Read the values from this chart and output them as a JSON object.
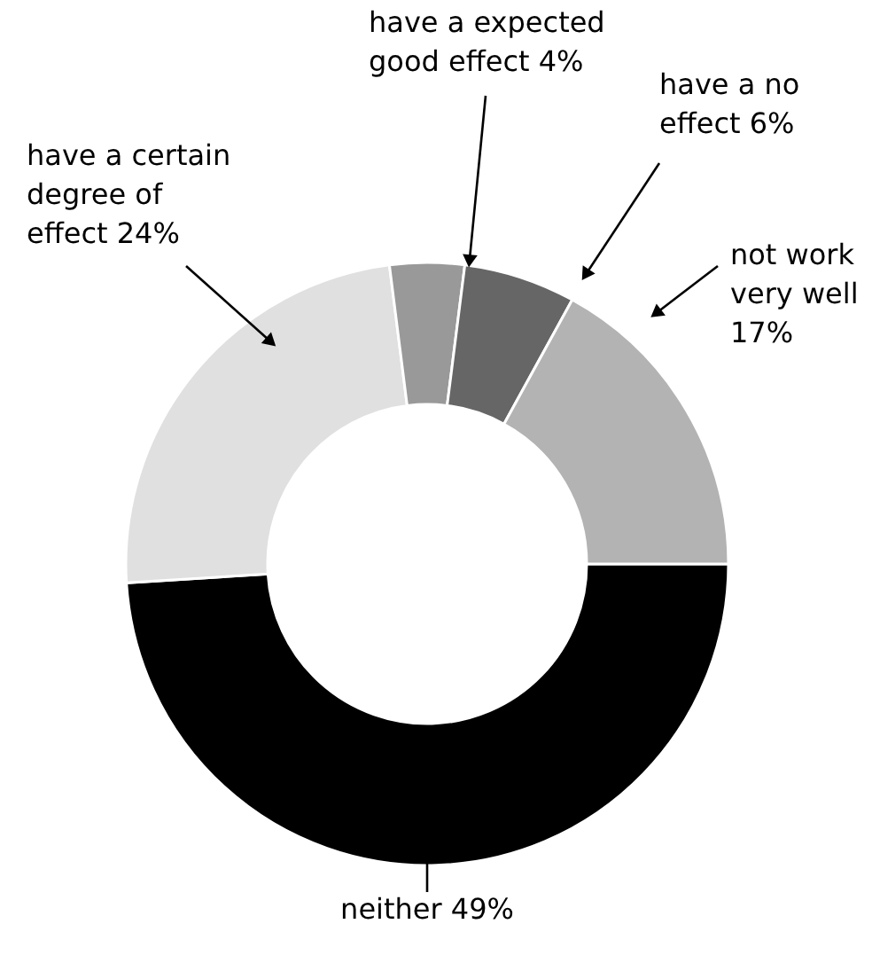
{
  "chart_data": {
    "type": "donut",
    "categories": [
      "neither",
      "have a certain degree of effect",
      "have a expected good effect",
      "have a no effect",
      "not work very well"
    ],
    "values": [
      49,
      24,
      4,
      6,
      17
    ],
    "value_labels": [
      "49%",
      "24%",
      "4%",
      "6%",
      "17%"
    ],
    "colors": [
      "#000000",
      "#e0e0e0",
      "#999999",
      "#666666",
      "#b3b3b3"
    ]
  }
}
